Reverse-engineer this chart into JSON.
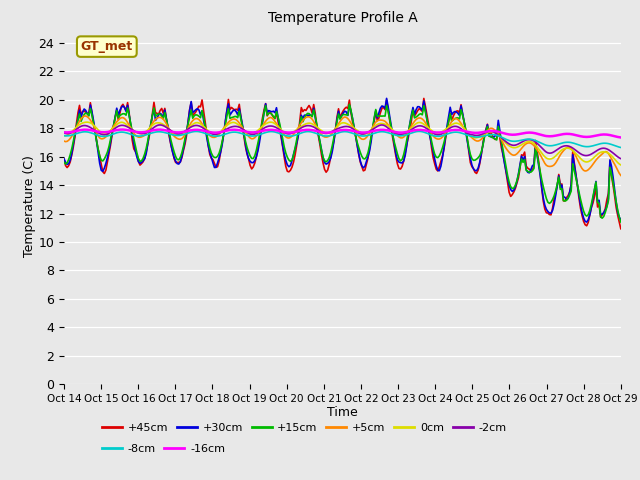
{
  "title": "Temperature Profile A",
  "xlabel": "Time",
  "ylabel": "Temperature (C)",
  "ylim": [
    0,
    25
  ],
  "yticks": [
    0,
    2,
    4,
    6,
    8,
    10,
    12,
    14,
    16,
    18,
    20,
    22,
    24
  ],
  "annotation_text": "GT_met",
  "bg_color": "#e8e8e8",
  "plot_bg_color": "#e8e8e8",
  "series": [
    {
      "label": "+45cm",
      "color": "#dd0000",
      "lw": 1.2
    },
    {
      "label": "+30cm",
      "color": "#0000dd",
      "lw": 1.2
    },
    {
      "label": "+15cm",
      "color": "#00bb00",
      "lw": 1.2
    },
    {
      "label": "+5cm",
      "color": "#ff8800",
      "lw": 1.2
    },
    {
      "label": "0cm",
      "color": "#dddd00",
      "lw": 1.2
    },
    {
      "label": "-2cm",
      "color": "#8800aa",
      "lw": 1.2
    },
    {
      "label": "-8cm",
      "color": "#00cccc",
      "lw": 1.2
    },
    {
      "label": "-16cm",
      "color": "#ff00ff",
      "lw": 1.8
    }
  ],
  "x_tick_labels": [
    "Oct 14",
    "Oct 15",
    "Oct 16",
    "Oct 17",
    "Oct 18",
    "Oct 19",
    "Oct 20",
    "Oct 21",
    "Oct 22",
    "Oct 23",
    "Oct 24",
    "Oct 25",
    "Oct 26",
    "Oct 27",
    "Oct 28",
    "Oct 29"
  ]
}
